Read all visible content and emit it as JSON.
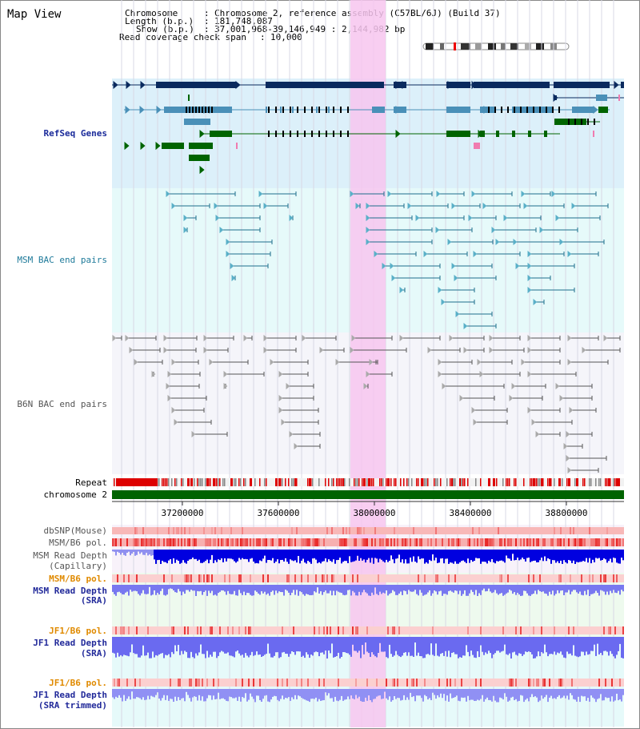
{
  "page": {
    "title": "Map View"
  },
  "header": {
    "chromosome_label": "Chromosome",
    "chromosome_value": "Chromosome 2, reference assembly (C57BL/6J) (Build 37)",
    "length_label": "Length (b.p.)",
    "length_value": "181,748,087",
    "show_label": "Show (b.p.)",
    "show_value": "37,001,968-39,146,949 : 2,144,982 bp",
    "span_label": "Read coverage check span",
    "span_value": "10,000"
  },
  "tracks": {
    "refseq": "RefSeq Genes",
    "msm_bac": "MSM BAC end pairs",
    "b6n_bac": "B6N BAC end pairs",
    "repeat": "Repeat",
    "chromosome": "chromosome 2",
    "dbsnp": "dbSNP(Mouse)",
    "msm_b6_pol_1": "MSM/B6 pol.",
    "msm_read_depth_cap_1": "MSM Read Depth",
    "msm_read_depth_cap_2": "(Capillary)",
    "msm_b6_pol_2": "MSM/B6 pol.",
    "msm_read_depth_sra_1": "MSM Read Depth",
    "msm_read_depth_sra_2": "(SRA)",
    "jf1_b6_pol_1": "JF1/B6 pol.",
    "jf1_read_depth_sra_1": "JF1 Read Depth",
    "jf1_read_depth_sra_2": "(SRA)",
    "jf1_b6_pol_2": "JF1/B6 pol.",
    "jf1_read_depth_trim_1": "JF1 Read Depth",
    "jf1_read_depth_trim_2": "(SRA trimmed)"
  },
  "axis": {
    "ticks": [
      "37200000",
      "37600000",
      "38000000",
      "38400000",
      "38800000"
    ]
  },
  "colors": {
    "refseq_bg": "#dcf0fa",
    "msm_bg": "#e6fafa",
    "b6n_bg": "#f5f5fa",
    "highlight": "#f5c8f0",
    "gene_dark": "#0a2a5e",
    "gene_mid": "#4a90b8",
    "gene_green": "#006400",
    "bac_teal": "#1e6e8c",
    "bac_gray": "#555555",
    "chrom_green": "#006400",
    "repeat_red": "#dd0000",
    "depth_blue": "#0000e0",
    "depth_light": "#7070f0"
  }
}
